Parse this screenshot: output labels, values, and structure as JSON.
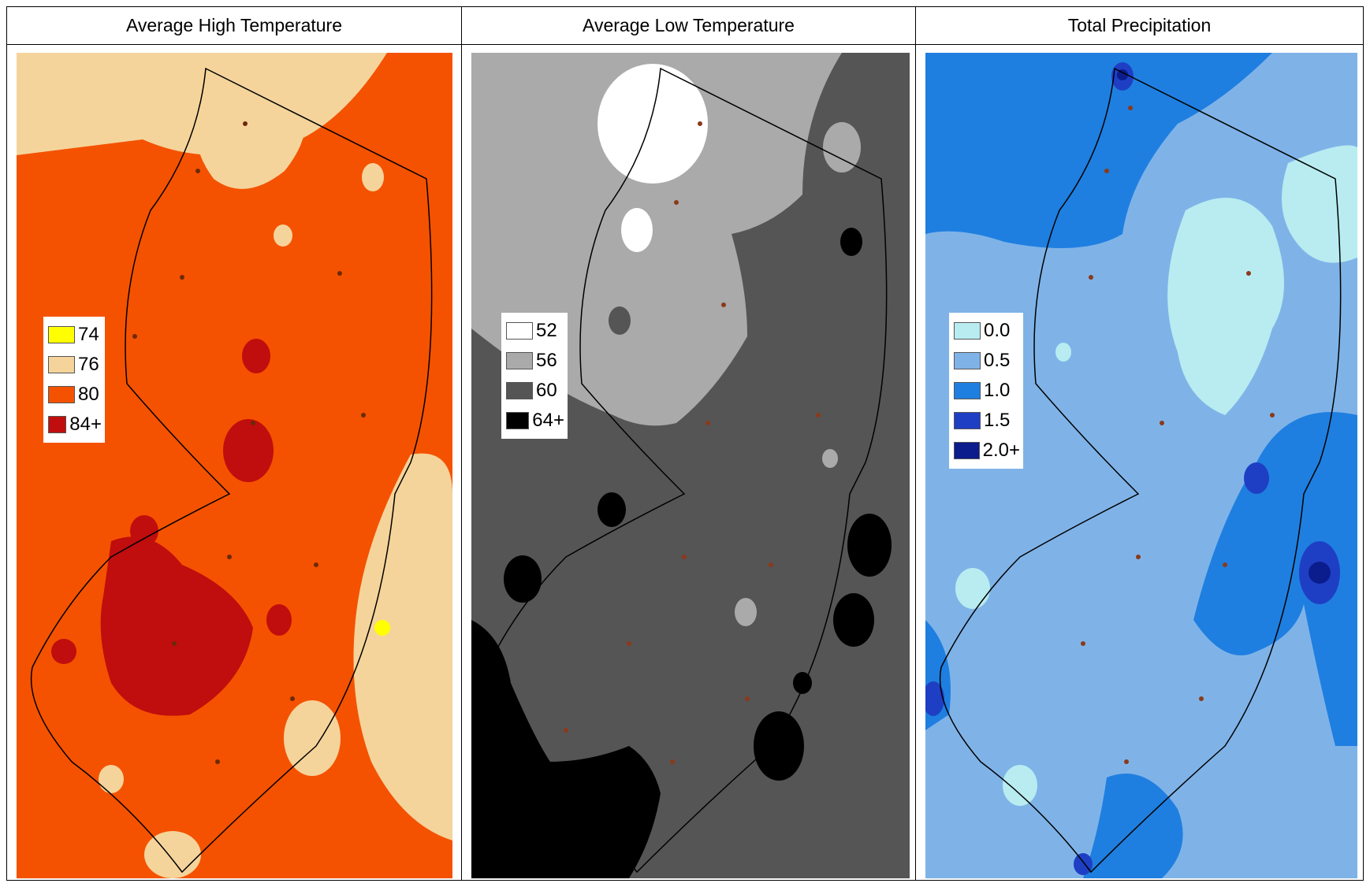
{
  "panels": [
    {
      "title": "Average High Temperature",
      "bg": "#f45200",
      "outside": "#f5d49b",
      "dark": "#c00d0d",
      "legend": [
        {
          "label": "74",
          "color": "#ffff00"
        },
        {
          "label": "76",
          "color": "#f5d49b"
        },
        {
          "label": "80",
          "color": "#f45200"
        },
        {
          "label": "84+",
          "color": "#c00d0d"
        }
      ]
    },
    {
      "title": "Average Low Temperature",
      "bg": "#555555",
      "outside": "#aaaaaa",
      "dark": "#000000",
      "legend": [
        {
          "label": "52",
          "color": "#ffffff"
        },
        {
          "label": "56",
          "color": "#aaaaaa"
        },
        {
          "label": "60",
          "color": "#555555"
        },
        {
          "label": "64+",
          "color": "#000000"
        }
      ]
    },
    {
      "title": "Total Precipitation",
      "bg": "#7fb3e8",
      "outside": "#1f7fe0",
      "dark": "#1e3fc4",
      "legend": [
        {
          "label": "0.0",
          "color": "#b8ecf0"
        },
        {
          "label": "0.5",
          "color": "#7fb3e8"
        },
        {
          "label": "1.0",
          "color": "#1f7fe0"
        },
        {
          "label": "1.5",
          "color": "#1e3fc4"
        },
        {
          "label": "2.0+",
          "color": "#0b1c8c"
        }
      ]
    }
  ]
}
